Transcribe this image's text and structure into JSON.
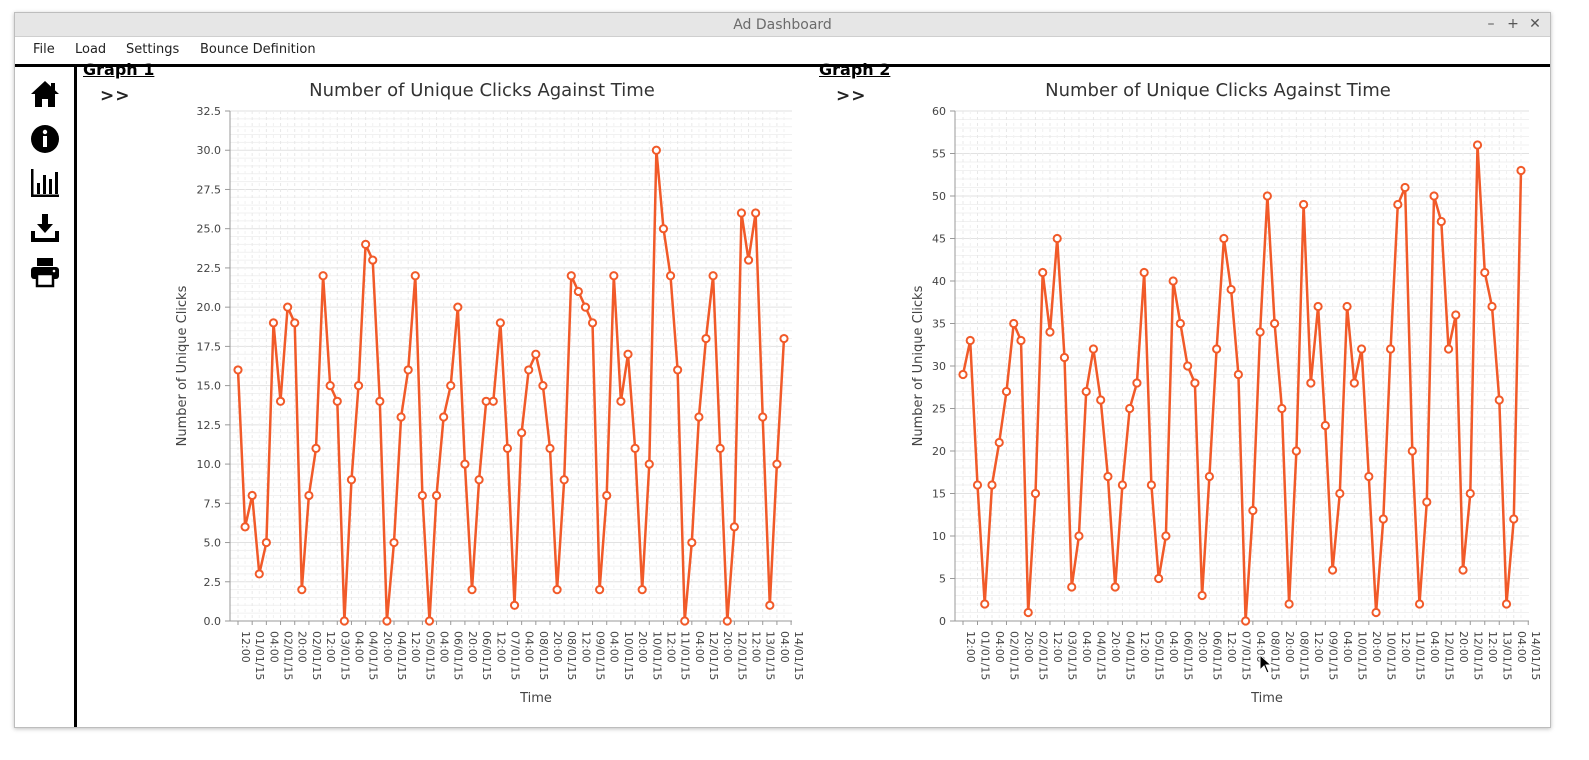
{
  "window": {
    "title": "Ad Dashboard"
  },
  "window_controls": {
    "minimize": "–",
    "maximize": "+",
    "close": "✕"
  },
  "menu": {
    "items": [
      "File",
      "Load",
      "Settings",
      "Bounce Definition"
    ]
  },
  "sidebar": {
    "icons": [
      "home-icon",
      "info-icon",
      "bar-chart-icon",
      "download-icon",
      "printer-icon"
    ]
  },
  "graph1": {
    "label": "Graph 1",
    "expand": ">>"
  },
  "graph2": {
    "label": "Graph 2",
    "expand": ">>"
  },
  "colors": {
    "series": "#f15a29",
    "grid": "#e8e8e8",
    "text": "#444444"
  },
  "chart_data": [
    {
      "type": "line",
      "title": "Number of Unique Clicks Against Time",
      "xlabel": "Time",
      "ylabel": "Number of Unique Clicks",
      "ylim": [
        0,
        32.5
      ],
      "yticks": [
        "0.0",
        "2.5",
        "5.0",
        "7.5",
        "10.0",
        "12.5",
        "15.0",
        "17.5",
        "20.0",
        "22.5",
        "25.0",
        "27.5",
        "30.0",
        "32.5"
      ],
      "xtick_labels": [
        "12:00",
        "01/01/15",
        "04:00",
        "02/01/15",
        "20:00",
        "02/01/15",
        "12:00",
        "03/01/15",
        "04:00",
        "04/01/15",
        "20:00",
        "04/01/15",
        "12:00",
        "05/01/15",
        "04:00",
        "06/01/15",
        "20:00",
        "06/01/15",
        "12:00",
        "07/01/15",
        "04:00",
        "08/01/15",
        "20:00",
        "08/01/15",
        "12:00",
        "09/01/15",
        "04:00",
        "10/01/15",
        "20:00",
        "10/01/15",
        "12:00",
        "11/01/15",
        "04:00",
        "12/01/15",
        "20:00",
        "12/01/15",
        "12:00",
        "13/01/15",
        "04:00",
        "14/01/15"
      ],
      "grid": true,
      "legend": "none",
      "values": [
        16,
        6,
        8,
        3,
        5,
        19,
        14,
        20,
        19,
        2,
        8,
        11,
        22,
        15,
        14,
        0,
        9,
        15,
        24,
        23,
        14,
        0,
        5,
        13,
        16,
        22,
        8,
        0,
        8,
        13,
        15,
        20,
        10,
        2,
        9,
        14,
        14,
        19,
        11,
        1,
        12,
        16,
        17,
        15,
        11,
        2,
        9,
        22,
        21,
        20,
        19,
        2,
        8,
        22,
        14,
        17,
        11,
        2,
        10,
        30,
        25,
        22,
        16,
        0,
        5,
        13,
        18,
        22,
        11,
        0,
        6,
        26,
        23,
        26,
        13,
        1,
        10,
        18
      ]
    },
    {
      "type": "line",
      "title": "Number of Unique Clicks Against Time",
      "xlabel": "Time",
      "ylabel": "Number of Unique Clicks",
      "ylim": [
        0,
        60
      ],
      "yticks": [
        "0",
        "5",
        "10",
        "15",
        "20",
        "25",
        "30",
        "35",
        "40",
        "45",
        "50",
        "55",
        "60"
      ],
      "xtick_labels": [
        "12:00",
        "01/01/15",
        "04:00",
        "02/01/15",
        "20:00",
        "02/01/15",
        "12:00",
        "03/01/15",
        "04:00",
        "04/01/15",
        "20:00",
        "04/01/15",
        "12:00",
        "05/01/15",
        "04:00",
        "06/01/15",
        "20:00",
        "06/01/15",
        "12:00",
        "07/01/15",
        "04:00",
        "08/01/15",
        "20:00",
        "08/01/15",
        "12:00",
        "09/01/15",
        "04:00",
        "10/01/15",
        "20:00",
        "10/01/15",
        "12:00",
        "11/01/15",
        "04:00",
        "12/01/15",
        "20:00",
        "12/01/15",
        "12:00",
        "13/01/15",
        "04:00",
        "14/01/15"
      ],
      "grid": true,
      "legend": "none",
      "values": [
        29,
        33,
        16,
        2,
        16,
        21,
        27,
        35,
        33,
        1,
        15,
        41,
        34,
        45,
        31,
        4,
        10,
        27,
        32,
        26,
        17,
        4,
        16,
        25,
        28,
        41,
        16,
        5,
        10,
        40,
        35,
        30,
        28,
        3,
        17,
        32,
        45,
        39,
        29,
        0,
        13,
        34,
        50,
        35,
        25,
        2,
        20,
        49,
        28,
        37,
        23,
        6,
        15,
        37,
        28,
        32,
        17,
        1,
        12,
        32,
        49,
        51,
        20,
        2,
        14,
        50,
        47,
        32,
        36,
        6,
        15,
        56,
        41,
        37,
        26,
        2,
        12,
        53
      ]
    }
  ]
}
